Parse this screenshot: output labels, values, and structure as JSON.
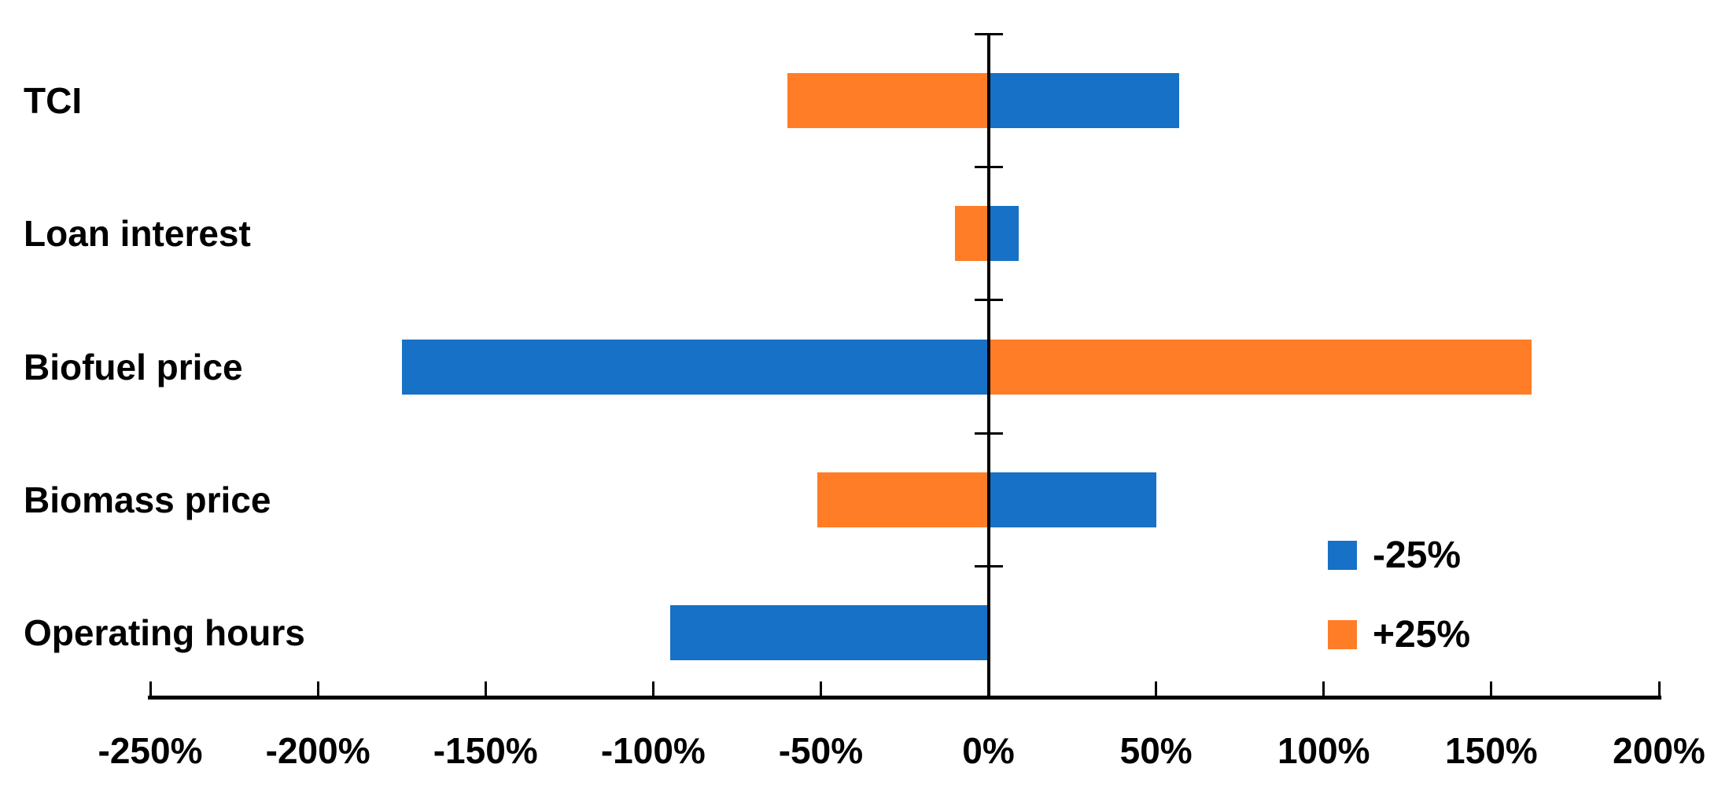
{
  "chart_data": {
    "type": "bar",
    "orientation": "horizontal",
    "title": "",
    "categories": [
      "TCI",
      "Loan interest",
      "Biofuel price",
      "Biomass price",
      "Operating hours"
    ],
    "series": [
      {
        "name": "-25%",
        "color": "#1771C6",
        "values": [
          57,
          9,
          -175,
          50,
          -95
        ]
      },
      {
        "name": "+25%",
        "color": "#FF7D26",
        "values": [
          -60,
          -10,
          162,
          -51,
          0
        ]
      }
    ],
    "x_axis": {
      "min": -250,
      "max": 200,
      "step": 50,
      "unit": "%",
      "tick_labels": [
        "-250%",
        "-200%",
        "-150%",
        "-100%",
        "-50%",
        "0%",
        "50%",
        "100%",
        "150%",
        "200%"
      ]
    },
    "legend": {
      "position": "inside-bottom-right",
      "entries": [
        {
          "label": "-25%",
          "color": "#1771C6"
        },
        {
          "label": "+25%",
          "color": "#FF7D26"
        }
      ]
    },
    "grid": false,
    "baseline_value": 0
  },
  "colors": {
    "axis": "#000000",
    "text": "#000000",
    "background": "#FFFFFF",
    "series_blue": "#1771C6",
    "series_orange": "#FF7D26"
  }
}
